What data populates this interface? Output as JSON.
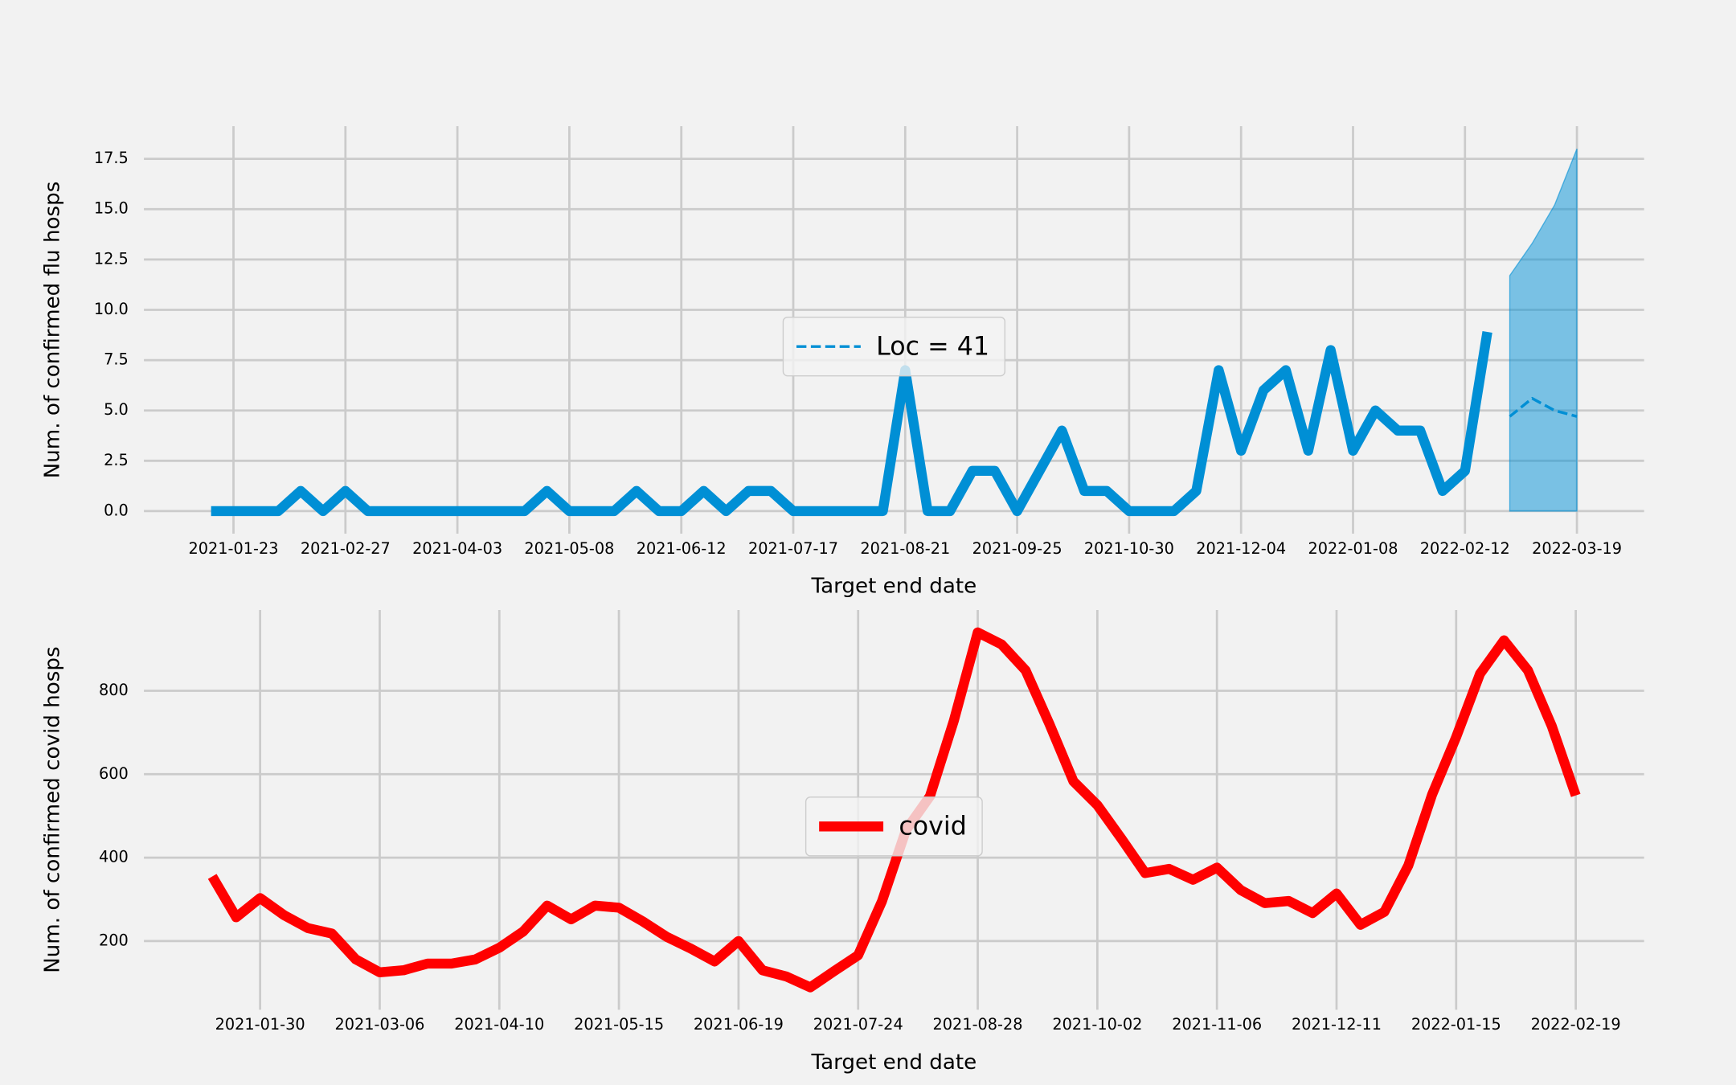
{
  "chart_data": [
    {
      "type": "line",
      "xlabel": "Target end date",
      "ylabel": "Num. of confirmed flu hosps",
      "x": [
        "2021-01-16",
        "2021-01-23",
        "2021-01-30",
        "2021-02-06",
        "2021-02-13",
        "2021-02-20",
        "2021-02-27",
        "2021-03-06",
        "2021-03-13",
        "2021-03-20",
        "2021-03-27",
        "2021-04-03",
        "2021-04-10",
        "2021-04-17",
        "2021-04-24",
        "2021-05-01",
        "2021-05-08",
        "2021-05-15",
        "2021-05-22",
        "2021-05-29",
        "2021-06-05",
        "2021-06-12",
        "2021-06-19",
        "2021-06-26",
        "2021-07-03",
        "2021-07-10",
        "2021-07-17",
        "2021-07-24",
        "2021-07-31",
        "2021-08-07",
        "2021-08-14",
        "2021-08-21",
        "2021-08-28",
        "2021-09-04",
        "2021-09-11",
        "2021-09-18",
        "2021-09-25",
        "2021-10-02",
        "2021-10-09",
        "2021-10-16",
        "2021-10-23",
        "2021-10-30",
        "2021-11-06",
        "2021-11-13",
        "2021-11-20",
        "2021-11-27",
        "2021-12-04",
        "2021-12-11",
        "2021-12-18",
        "2021-12-25",
        "2022-01-01",
        "2022-01-08",
        "2022-01-15",
        "2022-01-22",
        "2022-01-29",
        "2022-02-05",
        "2022-02-12",
        "2022-02-19"
      ],
      "series": [
        {
          "color": "#008fd5",
          "values": [
            0,
            0,
            0,
            0,
            1,
            0,
            1,
            0,
            0,
            0,
            0,
            0,
            0,
            0,
            0,
            1,
            0,
            0,
            0,
            1,
            0,
            0,
            1,
            0,
            1,
            1,
            0,
            0,
            0,
            0,
            0,
            7,
            0,
            0,
            2,
            2,
            0,
            2,
            4,
            1,
            1,
            0,
            0,
            0,
            1,
            7,
            3,
            6,
            7,
            3,
            8,
            3,
            5,
            4,
            4,
            1,
            2,
            8.9
          ]
        },
        {
          "name": "Loc = 41",
          "color": "#008fd5",
          "linestyle": "dashed",
          "x": [
            "2022-02-26",
            "2022-03-05",
            "2022-03-12",
            "2022-03-19"
          ],
          "values": [
            4.7,
            5.6,
            5.0,
            4.7
          ],
          "lower": [
            0,
            0,
            0,
            0
          ],
          "upper": [
            11.7,
            13.3,
            15.2,
            18.0
          ]
        }
      ],
      "xlim": [
        "2020-12-26",
        "2022-04-09"
      ],
      "xticks": [
        "2021-01-23",
        "2021-02-27",
        "2021-04-03",
        "2021-05-08",
        "2021-06-12",
        "2021-07-17",
        "2021-08-21",
        "2021-09-25",
        "2021-10-30",
        "2021-12-04",
        "2022-01-08",
        "2022-02-12",
        "2022-03-19"
      ],
      "ylim": [
        -0.9,
        18.9
      ],
      "yticks": [
        {
          "value": 0,
          "label": "0.0"
        },
        2.5,
        {
          "value": 5,
          "label": "5.0"
        },
        7.5,
        {
          "value": 10,
          "label": "10.0"
        },
        12.5,
        {
          "value": 15,
          "label": "15.0"
        },
        17.5
      ],
      "grid": true,
      "legend": "center"
    },
    {
      "type": "line",
      "xlabel": "Target end date",
      "ylabel": "Num. of confirmed covid hosps",
      "x": [
        "2021-01-16",
        "2021-01-23",
        "2021-01-30",
        "2021-02-06",
        "2021-02-13",
        "2021-02-20",
        "2021-02-27",
        "2021-03-06",
        "2021-03-13",
        "2021-03-20",
        "2021-03-27",
        "2021-04-03",
        "2021-04-10",
        "2021-04-17",
        "2021-04-24",
        "2021-05-01",
        "2021-05-08",
        "2021-05-15",
        "2021-05-22",
        "2021-05-29",
        "2021-06-05",
        "2021-06-12",
        "2021-06-19",
        "2021-06-26",
        "2021-07-03",
        "2021-07-10",
        "2021-07-17",
        "2021-07-24",
        "2021-07-31",
        "2021-08-07",
        "2021-08-14",
        "2021-08-21",
        "2021-08-28",
        "2021-09-04",
        "2021-09-11",
        "2021-09-18",
        "2021-09-25",
        "2021-10-02",
        "2021-10-09",
        "2021-10-16",
        "2021-10-23",
        "2021-10-30",
        "2021-11-06",
        "2021-11-13",
        "2021-11-20",
        "2021-11-27",
        "2021-12-04",
        "2021-12-11",
        "2021-12-18",
        "2021-12-25",
        "2022-01-01",
        "2022-01-08",
        "2022-01-15",
        "2022-01-22",
        "2022-01-29",
        "2022-02-05",
        "2022-02-12",
        "2022-02-19"
      ],
      "series": [
        {
          "name": "covid",
          "color": "#ff0000",
          "values": [
            355,
            257,
            303,
            262,
            231,
            218,
            156,
            125,
            130,
            146,
            146,
            156,
            184,
            223,
            285,
            252,
            285,
            280,
            247,
            210,
            182,
            151,
            200,
            130,
            115,
            89,
            128,
            166,
            296,
            466,
            547,
            728,
            940,
            911,
            849,
            720,
            583,
            526,
            446,
            363,
            373,
            347,
            376,
            322,
            291,
            296,
            267,
            314,
            239,
            270,
            381,
            552,
            689,
            841,
            921,
            849,
            715,
            549
          ]
        }
      ],
      "xlim": [
        "2020-12-27",
        "2022-03-11"
      ],
      "xticks": [
        "2021-01-30",
        "2021-03-06",
        "2021-04-10",
        "2021-05-15",
        "2021-06-19",
        "2021-07-24",
        "2021-08-28",
        "2021-10-02",
        "2021-11-06",
        "2021-12-11",
        "2022-01-15",
        "2022-02-19"
      ],
      "ylim": [
        46,
        983
      ],
      "yticks": [
        200,
        400,
        600,
        800
      ],
      "grid": true,
      "legend": "center"
    }
  ]
}
